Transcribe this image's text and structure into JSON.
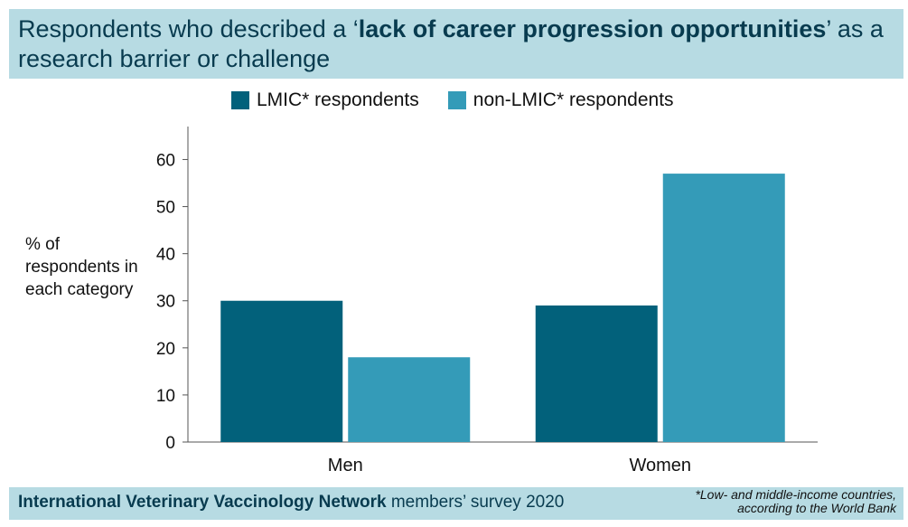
{
  "header": {
    "title_pre": "Respondents who described a ‘",
    "title_bold": "lack of career progression opportunities",
    "title_post": "’ as a research barrier or challenge"
  },
  "chart_data": {
    "type": "bar",
    "categories": [
      "Men",
      "Women"
    ],
    "series": [
      {
        "name": "LMIC* respondents",
        "values": [
          30,
          29
        ],
        "color": "#02617b"
      },
      {
        "name": "non-LMIC* respondents",
        "values": [
          18,
          57
        ],
        "color": "#349bb8"
      }
    ],
    "ylabel": "% of respondents in each category",
    "ylim": [
      0,
      67
    ],
    "yticks": [
      0,
      10,
      20,
      30,
      40,
      50,
      60
    ],
    "grid": false,
    "legend": "top"
  },
  "footer": {
    "source_bold": "International Veterinary Vaccinology Network",
    "source_rest": " members’ survey 2020",
    "footnote_line1": "*Low- and middle-income countries,",
    "footnote_line2": "according to the World Bank"
  },
  "colors": {
    "header_bg": "#b7dbe3",
    "lmic": "#02617b",
    "non_lmic": "#349bb8"
  }
}
